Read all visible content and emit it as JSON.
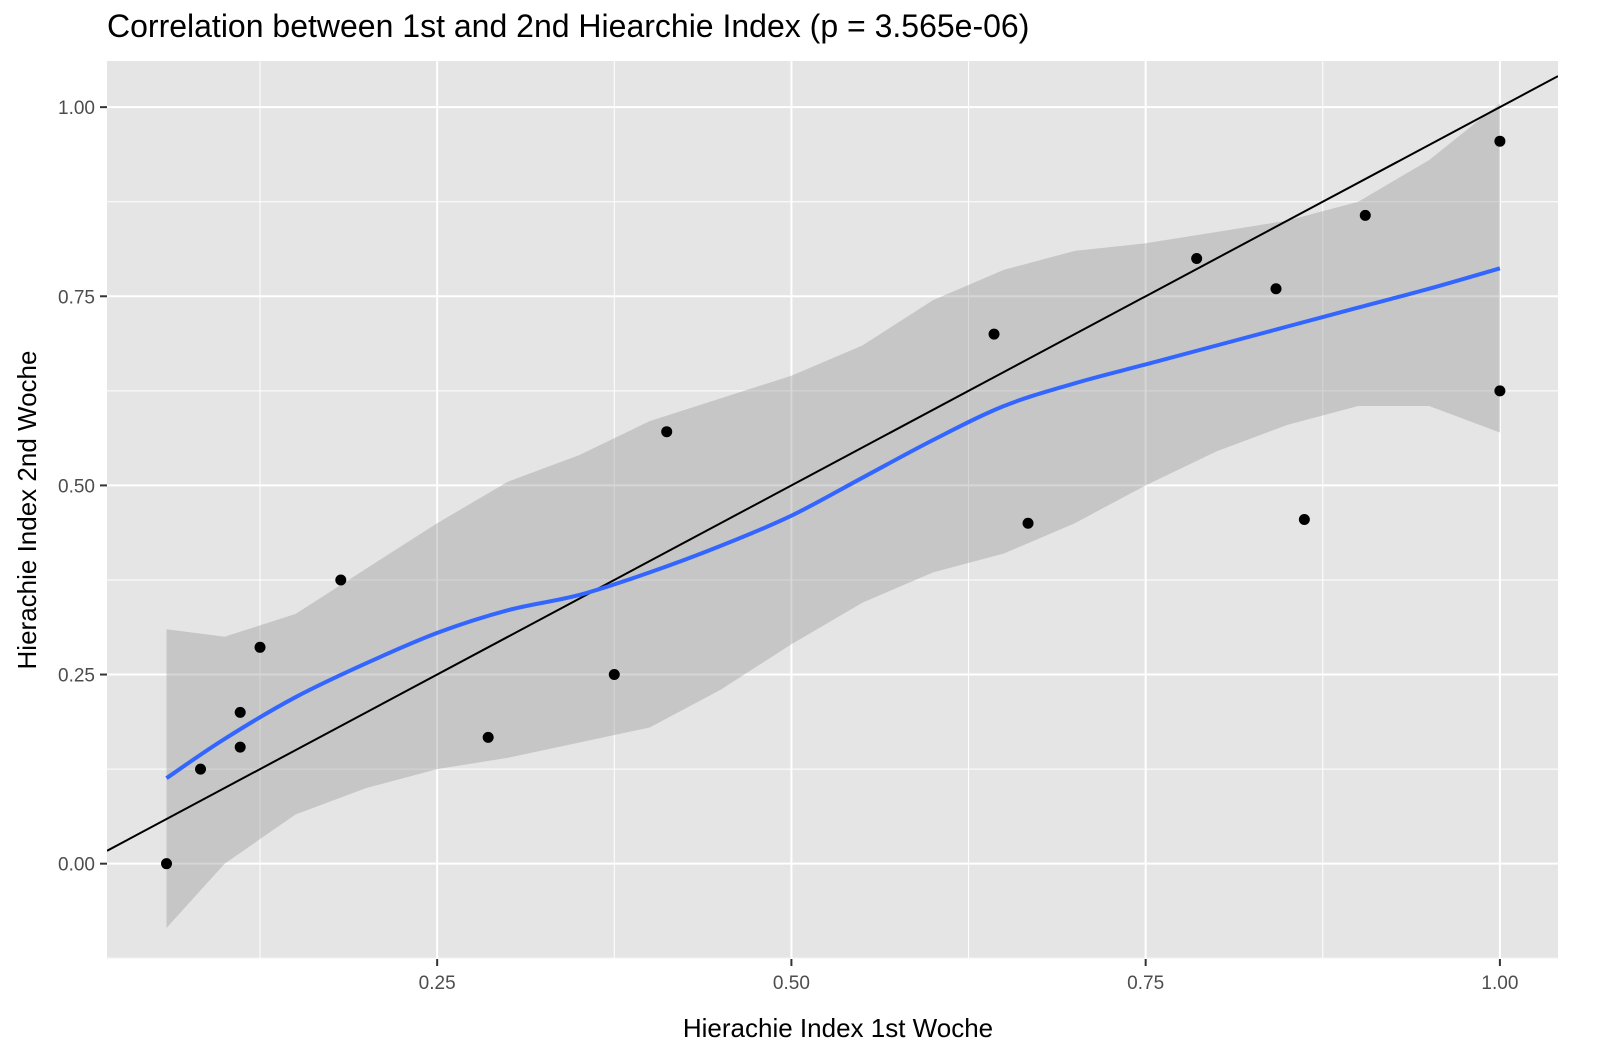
{
  "chart_data": {
    "type": "scatter",
    "title": "Correlation between 1st and 2nd Hiearchie Index (p = 3.565e-06)",
    "xlabel": "Hierachie Index 1st Woche",
    "ylabel": "Hierachie Index 2nd Woche",
    "xlim": [
      0.017,
      1.041
    ],
    "ylim": [
      -0.126,
      1.061
    ],
    "x_ticks": [
      0.25,
      0.5,
      0.75,
      1.0
    ],
    "x_tick_labels": [
      "0.25",
      "0.50",
      "0.75",
      "1.00"
    ],
    "y_ticks": [
      0.0,
      0.25,
      0.5,
      0.75,
      1.0
    ],
    "y_tick_labels": [
      "0.00",
      "0.25",
      "0.50",
      "0.75",
      "1.00"
    ],
    "grid": true,
    "panel_background": "#e5e5e5",
    "grid_color": "#ffffff",
    "points": {
      "x": [
        0.059,
        0.083,
        0.111,
        0.111,
        0.125,
        0.182,
        0.286,
        0.375,
        0.412,
        0.643,
        0.667,
        0.786,
        0.842,
        0.862,
        0.905,
        1.0,
        1.0
      ],
      "y": [
        0.0,
        0.125,
        0.2,
        0.154,
        0.286,
        0.375,
        0.167,
        0.25,
        0.571,
        0.7,
        0.45,
        0.8,
        0.76,
        0.455,
        0.857,
        0.955,
        0.625
      ],
      "color": "#000000"
    },
    "reference_line": {
      "intercept": 0.0,
      "slope": 1.0,
      "color": "#000000"
    },
    "smooth": {
      "color": "#3366ff",
      "band_color": "#999999",
      "x": [
        0.059,
        0.1,
        0.15,
        0.2,
        0.25,
        0.3,
        0.35,
        0.4,
        0.45,
        0.5,
        0.55,
        0.6,
        0.65,
        0.7,
        0.75,
        0.8,
        0.85,
        0.9,
        0.95,
        1.0
      ],
      "y": [
        0.113,
        0.165,
        0.22,
        0.265,
        0.305,
        0.335,
        0.355,
        0.385,
        0.42,
        0.46,
        0.51,
        0.56,
        0.605,
        0.635,
        0.66,
        0.685,
        0.71,
        0.735,
        0.76,
        0.787
      ],
      "lower": [
        -0.085,
        0.0,
        0.065,
        0.1,
        0.125,
        0.14,
        0.16,
        0.18,
        0.23,
        0.29,
        0.345,
        0.385,
        0.41,
        0.45,
        0.5,
        0.545,
        0.58,
        0.605,
        0.605,
        0.57
      ],
      "upper": [
        0.31,
        0.3,
        0.33,
        0.39,
        0.45,
        0.505,
        0.54,
        0.585,
        0.615,
        0.645,
        0.685,
        0.745,
        0.785,
        0.81,
        0.82,
        0.835,
        0.85,
        0.875,
        0.93,
        1.005
      ]
    }
  }
}
